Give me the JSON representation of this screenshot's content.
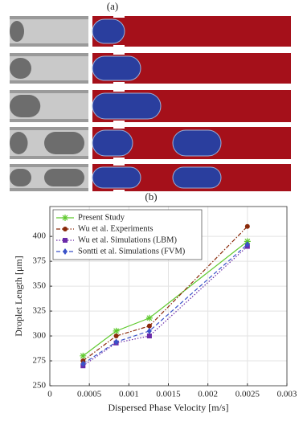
{
  "panel_labels": [
    "(a)",
    "(b)"
  ],
  "chart_data": {
    "type": "line",
    "xlabel": "Dispersed Phase Velocity [m/s]",
    "ylabel": "Droplet Length [μm]",
    "x": [
      0.00042,
      0.00084,
      0.00126,
      0.0025
    ],
    "xlim": [
      0,
      0.003
    ],
    "xticks": [
      0,
      0.0005,
      0.001,
      0.0015,
      0.002,
      0.0025,
      0.003
    ],
    "ylim": [
      250,
      430
    ],
    "yticks": [
      250,
      275,
      300,
      325,
      350,
      375,
      400
    ],
    "grid": true,
    "legend": "upper-left",
    "series": [
      {
        "name": "Present Study",
        "color": "#5fc92e",
        "marker": "star",
        "linestyle": "solid",
        "values": [
          280,
          305,
          318,
          395
        ]
      },
      {
        "name": "Wu et al. Experiments",
        "color": "#8a2a0a",
        "marker": "circle",
        "linestyle": "dashdot",
        "values": [
          275,
          300,
          310,
          410
        ]
      },
      {
        "name": "Wu et al. Simulations (LBM)",
        "color": "#6a2aa8",
        "marker": "square",
        "linestyle": "dotted",
        "values": [
          270,
          293,
          300,
          390
        ]
      },
      {
        "name": "Sontti et al. Simulations (FVM)",
        "color": "#3a52c8",
        "marker": "diamond",
        "linestyle": "dashed",
        "values": [
          272,
          294,
          305,
          392
        ]
      }
    ]
  }
}
